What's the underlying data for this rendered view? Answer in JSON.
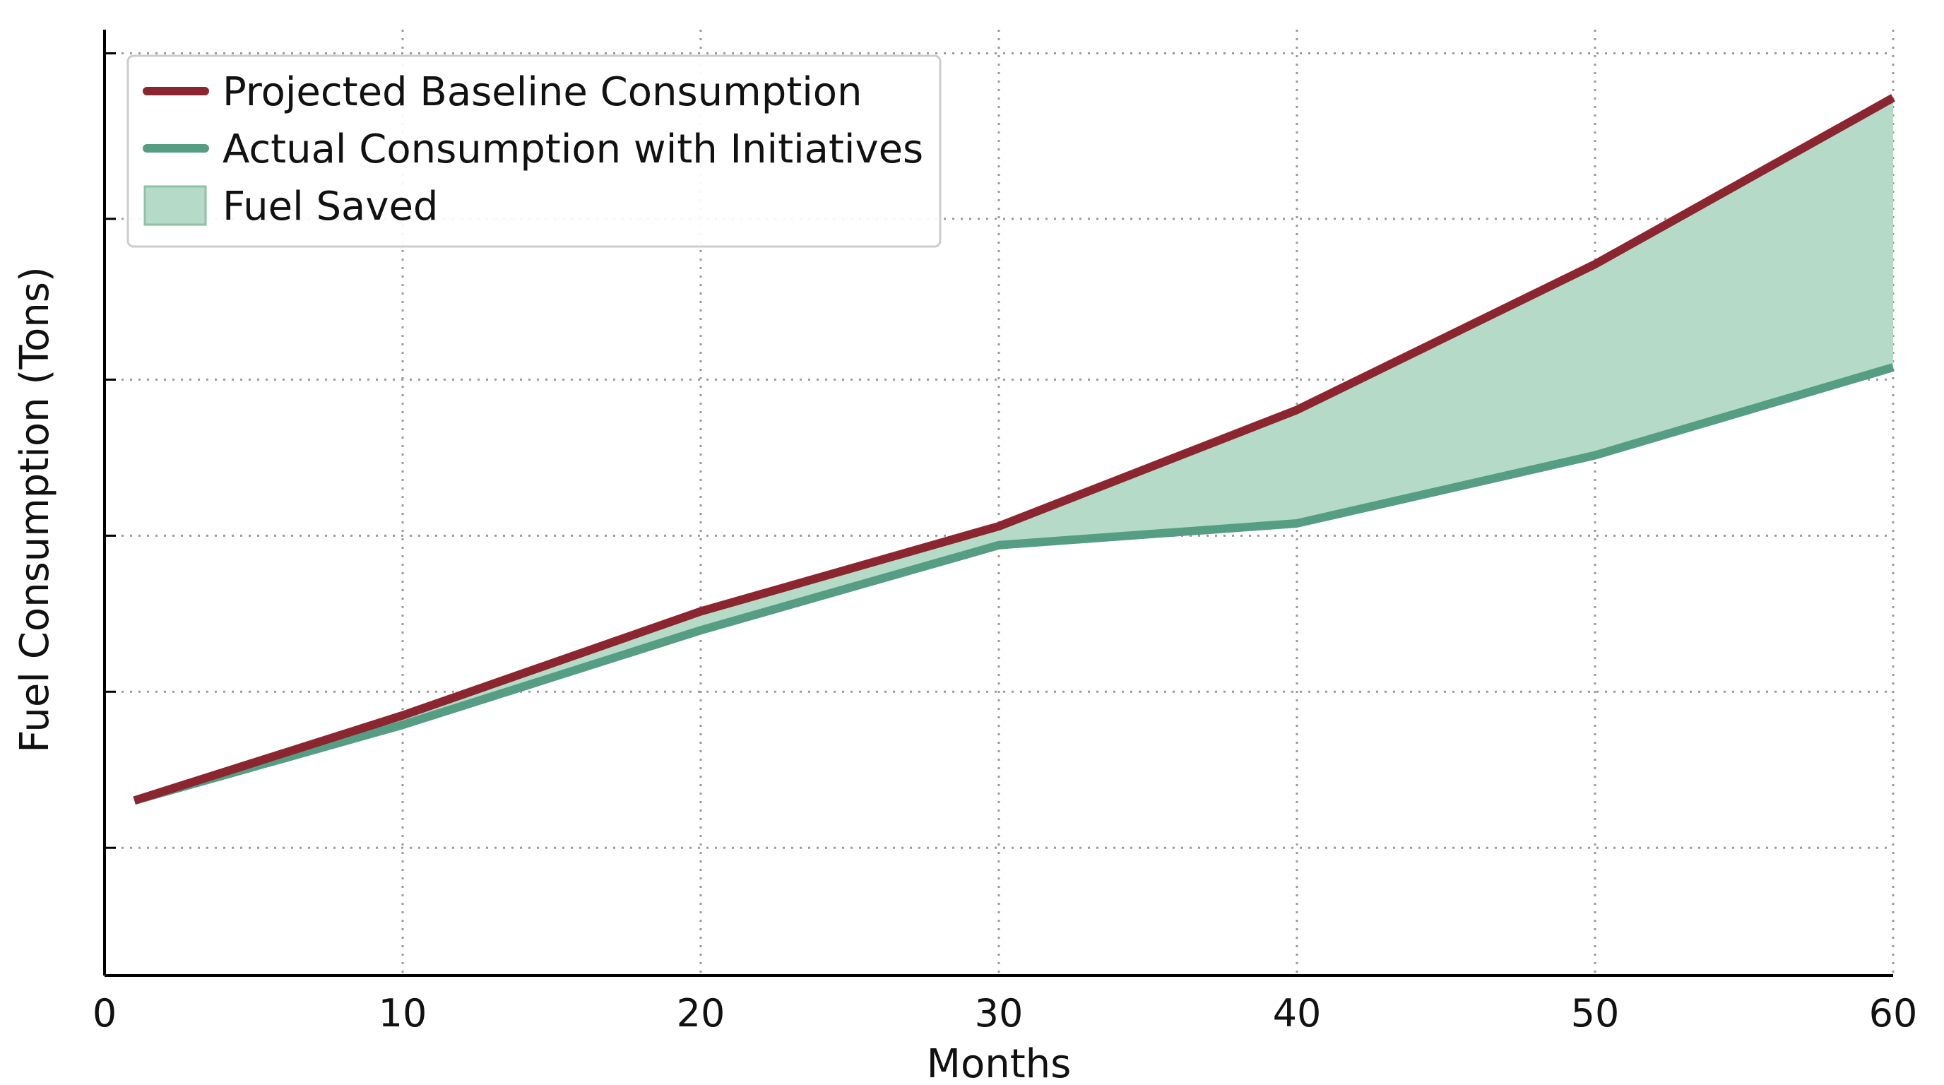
{
  "chart_data": {
    "type": "area",
    "title": "",
    "xlabel": "Months",
    "ylabel": "Fuel Consumption (Tons)",
    "xlim": [
      0,
      60
    ],
    "ylim": [
      0,
      100
    ],
    "x_ticks": [
      0,
      10,
      20,
      30,
      40,
      50,
      60
    ],
    "y_ticks": [
      13.5,
      30,
      46.5,
      63,
      80,
      97.5
    ],
    "y_tick_labels_shown": false,
    "grid": true,
    "legend_position": "top-left",
    "series": [
      {
        "name": "Projected Baseline Consumption",
        "color": "#8b2631",
        "x": [
          1,
          10,
          20,
          30,
          40,
          50,
          60
        ],
        "y": [
          18.5,
          27.5,
          38.5,
          47.5,
          59.8,
          75.2,
          92.8
        ]
      },
      {
        "name": "Actual Consumption with Initiatives",
        "color": "#559e84",
        "x": [
          1,
          10,
          20,
          30,
          40,
          50,
          60
        ],
        "y": [
          18.5,
          26.5,
          36.5,
          45.5,
          47.8,
          55.0,
          64.3
        ]
      }
    ],
    "fill_between": {
      "name": "Fuel Saved",
      "color": "#b5dbc8",
      "edge_color": "#8fbfa6"
    }
  }
}
